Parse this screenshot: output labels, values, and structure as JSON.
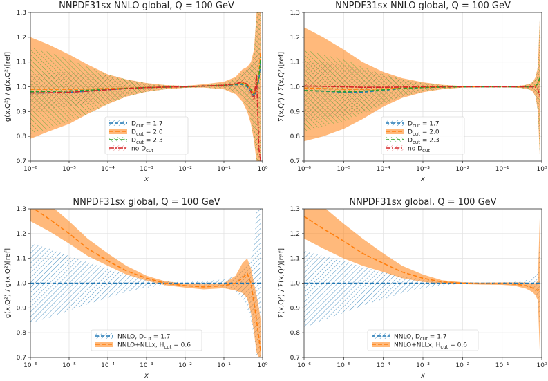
{
  "chart_data": [
    {
      "type": "line",
      "title": "NNPDF31sx NNLO global, Q = 100 GeV",
      "xlabel": "x",
      "ylabel": "g(x,Q²) / g(x,Q²)[ref]",
      "xscale": "log",
      "xlim": [
        1e-06,
        1
      ],
      "ylim": [
        0.7,
        1.3
      ],
      "xticks": [
        "10⁻⁶",
        "10⁻⁵",
        "10⁻⁴",
        "10⁻³",
        "10⁻²",
        "10⁻¹",
        "10⁰"
      ],
      "yticks": [
        "0.7",
        "0.8",
        "0.9",
        "1.0",
        "1.1",
        "1.2",
        "1.3"
      ],
      "legend_position": "bottom-center",
      "x": [
        1e-06,
        3e-06,
        1e-05,
        3e-05,
        0.0001,
        0.0003,
        0.001,
        0.003,
        0.01,
        0.03,
        0.1,
        0.2,
        0.3,
        0.4,
        0.5,
        0.6,
        0.7,
        0.8,
        0.9
      ],
      "series": [
        {
          "name": "D_cut = 1.7",
          "legend": "D",
          "sub": "cut",
          "value_label": " = 1.7",
          "color": "#1f77b4",
          "style": "hatch-diag",
          "values": [
            0.975,
            0.975,
            0.977,
            0.982,
            0.988,
            0.993,
            0.997,
            0.999,
            1.0,
            1.003,
            1.005,
            1.008,
            1.01,
            1.0,
            0.98,
            0.96,
            0.99,
            1.03,
            1.1
          ],
          "upper": [
            1.05,
            1.06,
            1.06,
            1.055,
            1.045,
            1.03,
            1.015,
            1.007,
            1.004,
            1.008,
            1.015,
            1.03,
            1.06,
            1.07,
            1.08,
            1.12,
            1.3,
            1.3,
            1.3
          ],
          "lower": [
            0.9,
            0.91,
            0.92,
            0.93,
            0.94,
            0.96,
            0.98,
            0.99,
            0.996,
            0.998,
            0.993,
            0.98,
            0.96,
            0.93,
            0.88,
            0.8,
            0.72,
            0.7,
            0.7
          ]
        },
        {
          "name": "D_cut = 2.0",
          "legend": "D",
          "sub": "cut",
          "value_label": " = 2.0",
          "color": "#ff7f0e",
          "style": "filled",
          "values": [
            0.99,
            0.99,
            0.99,
            0.991,
            0.993,
            0.995,
            0.997,
            0.999,
            1.0,
            1.003,
            1.006,
            1.01,
            1.015,
            1.01,
            0.99,
            0.97,
            1.0,
            1.05,
            1.15
          ],
          "upper": [
            1.2,
            1.17,
            1.13,
            1.09,
            1.05,
            1.03,
            1.015,
            1.007,
            1.004,
            1.01,
            1.02,
            1.04,
            1.07,
            1.08,
            1.1,
            1.15,
            1.3,
            1.3,
            1.3
          ],
          "lower": [
            0.79,
            0.82,
            0.85,
            0.89,
            0.93,
            0.96,
            0.98,
            0.99,
            0.996,
            0.997,
            0.99,
            0.97,
            0.94,
            0.9,
            0.85,
            0.78,
            0.7,
            0.7,
            0.7
          ]
        },
        {
          "name": "D_cut = 2.3",
          "legend": "D",
          "sub": "cut",
          "value_label": " = 2.3",
          "color": "#2ca02c",
          "style": "hatch-cross",
          "values": [
            0.98,
            0.981,
            0.983,
            0.986,
            0.99,
            0.994,
            0.997,
            0.999,
            1.0,
            1.003,
            1.006,
            1.01,
            1.012,
            1.005,
            0.99,
            0.97,
            1.0,
            1.04,
            1.12
          ],
          "upper": [
            1.16,
            1.14,
            1.11,
            1.08,
            1.05,
            1.03,
            1.015,
            1.007,
            1.004,
            1.008,
            1.015,
            1.035,
            1.06,
            1.07,
            1.09,
            1.14,
            1.3,
            1.3,
            1.3
          ],
          "lower": [
            0.81,
            0.83,
            0.86,
            0.89,
            0.93,
            0.96,
            0.98,
            0.99,
            0.996,
            0.997,
            0.99,
            0.975,
            0.95,
            0.91,
            0.86,
            0.79,
            0.7,
            0.7,
            0.7
          ]
        },
        {
          "name": "no D_cut",
          "legend": "no D",
          "sub": "cut",
          "value_label": "",
          "color": "#d62728",
          "style": "dashdot",
          "values": [
            0.975,
            0.976,
            0.978,
            0.982,
            0.988,
            0.993,
            0.997,
            0.999,
            1.0,
            1.003,
            1.006,
            1.012,
            1.02,
            1.01,
            0.98,
            0.95,
            1.05,
            0.75,
            0.7
          ],
          "upper": [
            0.985,
            0.985,
            0.985,
            0.988,
            0.992,
            0.996,
            0.999,
            1.0,
            1.002,
            1.005,
            1.009,
            1.016,
            1.026,
            1.02,
            1.0,
            0.98,
            1.1,
            0.85,
            0.8
          ],
          "lower": [
            0.965,
            0.966,
            0.97,
            0.976,
            0.984,
            0.99,
            0.995,
            0.998,
            0.998,
            1.001,
            1.003,
            1.008,
            1.014,
            1.0,
            0.96,
            0.92,
            1.0,
            0.7,
            0.7
          ]
        }
      ]
    },
    {
      "type": "line",
      "title": "NNPDF31sx NNLO global, Q = 100 GeV",
      "xlabel": "x",
      "ylabel": "Σ(x,Q²) / Σ(x,Q²)[ref]",
      "xscale": "log",
      "xlim": [
        1e-06,
        1
      ],
      "ylim": [
        0.7,
        1.3
      ],
      "xticks": [
        "10⁻⁶",
        "10⁻⁵",
        "10⁻⁴",
        "10⁻³",
        "10⁻²",
        "10⁻¹",
        "10⁰"
      ],
      "yticks": [
        "0.7",
        "0.8",
        "0.9",
        "1.0",
        "1.1",
        "1.2",
        "1.3"
      ],
      "legend_position": "bottom-center",
      "x": [
        1e-06,
        3e-06,
        1e-05,
        3e-05,
        0.0001,
        0.0003,
        0.001,
        0.003,
        0.01,
        0.03,
        0.1,
        0.2,
        0.3,
        0.4,
        0.5,
        0.6,
        0.7,
        0.8,
        0.9
      ],
      "series": [
        {
          "name": "D_cut = 1.7",
          "legend": "D",
          "sub": "cut",
          "value_label": " = 1.7",
          "color": "#1f77b4",
          "style": "hatch-diag",
          "values": [
            0.985,
            0.982,
            0.978,
            0.978,
            0.986,
            0.993,
            0.997,
            0.999,
            1.0,
            1.0,
            1.0,
            1.0,
            1.0,
            1.0,
            1.0,
            1.0,
            1.005,
            1.01,
            1.03
          ],
          "upper": [
            1.1,
            1.1,
            1.09,
            1.07,
            1.05,
            1.03,
            1.015,
            1.007,
            1.003,
            1.002,
            1.002,
            1.003,
            1.005,
            1.008,
            1.012,
            1.02,
            1.04,
            1.08,
            1.3
          ],
          "lower": [
            0.86,
            0.87,
            0.88,
            0.9,
            0.93,
            0.96,
            0.98,
            0.993,
            0.997,
            0.998,
            0.998,
            0.997,
            0.995,
            0.992,
            0.988,
            0.98,
            0.96,
            0.9,
            0.7
          ]
        },
        {
          "name": "D_cut = 2.0",
          "legend": "D",
          "sub": "cut",
          "value_label": " = 2.0",
          "color": "#ff7f0e",
          "style": "filled",
          "values": [
            0.995,
            0.993,
            0.99,
            0.99,
            0.992,
            0.995,
            0.998,
            0.999,
            1.0,
            1.0,
            1.0,
            1.0,
            1.0,
            1.0,
            1.0,
            1.0,
            1.005,
            1.01,
            1.03
          ],
          "upper": [
            1.24,
            1.2,
            1.15,
            1.1,
            1.06,
            1.035,
            1.018,
            1.008,
            1.003,
            1.002,
            1.002,
            1.003,
            1.005,
            1.008,
            1.012,
            1.02,
            1.04,
            1.08,
            1.3
          ],
          "lower": [
            0.78,
            0.8,
            0.83,
            0.87,
            0.92,
            0.955,
            0.978,
            0.99,
            0.997,
            0.998,
            0.998,
            0.997,
            0.995,
            0.992,
            0.988,
            0.98,
            0.96,
            0.9,
            0.7
          ]
        },
        {
          "name": "D_cut = 2.3",
          "legend": "D",
          "sub": "cut",
          "value_label": " = 2.3",
          "color": "#2ca02c",
          "style": "hatch-cross",
          "values": [
            0.985,
            0.983,
            0.98,
            0.982,
            0.988,
            0.994,
            0.997,
            0.999,
            1.0,
            1.0,
            1.0,
            1.0,
            1.0,
            1.0,
            1.0,
            1.0,
            1.005,
            1.012,
            1.04
          ],
          "upper": [
            1.15,
            1.13,
            1.11,
            1.08,
            1.05,
            1.03,
            1.015,
            1.007,
            1.003,
            1.002,
            1.002,
            1.003,
            1.005,
            1.008,
            1.012,
            1.02,
            1.04,
            1.08,
            1.3
          ],
          "lower": [
            0.82,
            0.84,
            0.86,
            0.89,
            0.93,
            0.96,
            0.98,
            0.992,
            0.997,
            0.998,
            0.998,
            0.997,
            0.995,
            0.992,
            0.988,
            0.98,
            0.96,
            0.9,
            0.7
          ]
        },
        {
          "name": "no D_cut",
          "legend": "no D",
          "sub": "cut",
          "value_label": "",
          "color": "#d62728",
          "style": "dashdot",
          "values": [
            1.003,
            1.002,
            1.0,
            0.998,
            0.998,
            0.999,
            1.0,
            1.0,
            1.0,
            1.0,
            1.0,
            1.0,
            1.0,
            1.0,
            1.0,
            1.0,
            0.998,
            0.99,
            0.96
          ],
          "upper": [
            1.01,
            1.008,
            1.005,
            1.003,
            1.002,
            1.002,
            1.002,
            1.001,
            1.001,
            1.001,
            1.001,
            1.002,
            1.003,
            1.004,
            1.005,
            1.008,
            1.01,
            1.01,
            0.99
          ],
          "lower": [
            0.996,
            0.996,
            0.995,
            0.993,
            0.994,
            0.996,
            0.998,
            0.999,
            0.999,
            0.999,
            0.999,
            0.998,
            0.997,
            0.996,
            0.995,
            0.992,
            0.985,
            0.97,
            0.93
          ]
        }
      ]
    },
    {
      "type": "line",
      "title": "NNPDF31sx global, Q = 100 GeV",
      "xlabel": "x",
      "ylabel": "g(x,Q²) / g(x,Q²)[ref]",
      "xscale": "log",
      "xlim": [
        1e-06,
        1
      ],
      "ylim": [
        0.7,
        1.3
      ],
      "xticks": [
        "10⁻⁶",
        "10⁻⁵",
        "10⁻⁴",
        "10⁻³",
        "10⁻²",
        "10⁻¹",
        "10⁰"
      ],
      "yticks": [
        "0.7",
        "0.8",
        "0.9",
        "1.0",
        "1.1",
        "1.2",
        "1.3"
      ],
      "legend_position": "bottom-center",
      "x": [
        1e-06,
        3e-06,
        1e-05,
        3e-05,
        0.0001,
        0.0003,
        0.001,
        0.003,
        0.01,
        0.03,
        0.1,
        0.2,
        0.3,
        0.4,
        0.5,
        0.6,
        0.7,
        0.8,
        0.9
      ],
      "series": [
        {
          "name": "NNLO, D_cut = 1.7",
          "legend": "NNLO, D",
          "sub": "cut",
          "value_label": " = 1.7",
          "color": "#1f77b4",
          "style": "hatch-diag",
          "values": [
            1.0,
            1.0,
            1.0,
            1.0,
            1.0,
            1.0,
            1.0,
            1.0,
            1.0,
            1.0,
            1.0,
            1.0,
            1.0,
            1.0,
            1.0,
            1.0,
            1.0,
            1.0,
            1.0
          ],
          "upper": [
            1.16,
            1.14,
            1.11,
            1.085,
            1.06,
            1.035,
            1.018,
            1.008,
            1.004,
            1.008,
            1.015,
            1.03,
            1.06,
            1.08,
            1.1,
            1.15,
            1.3,
            1.3,
            1.3
          ],
          "lower": [
            0.84,
            0.86,
            0.89,
            0.915,
            0.94,
            0.965,
            0.982,
            0.992,
            0.996,
            0.992,
            0.985,
            0.97,
            0.94,
            0.9,
            0.85,
            0.78,
            0.7,
            0.7,
            0.7
          ]
        },
        {
          "name": "NNLO+NLLx, H_cut = 0.6",
          "legend": "NNLO+NLLx, H",
          "sub": "cut",
          "value_label": " = 0.6",
          "color": "#ff7f0e",
          "style": "filled",
          "values": [
            1.31,
            1.26,
            1.2,
            1.14,
            1.09,
            1.05,
            1.02,
            1.0,
            0.99,
            0.985,
            0.99,
            1.0,
            1.02,
            1.04,
            1.0,
            0.92,
            0.85,
            0.78,
            0.72
          ],
          "upper": [
            1.37,
            1.32,
            1.25,
            1.18,
            1.12,
            1.07,
            1.03,
            1.008,
            0.998,
            0.995,
            1.0,
            1.03,
            1.08,
            1.1,
            1.06,
            1.0,
            0.95,
            0.9,
            0.85
          ],
          "lower": [
            1.25,
            1.21,
            1.16,
            1.11,
            1.07,
            1.035,
            1.01,
            0.992,
            0.982,
            0.975,
            0.98,
            0.97,
            0.96,
            0.94,
            0.88,
            0.8,
            0.72,
            0.7,
            0.7
          ]
        }
      ]
    },
    {
      "type": "line",
      "title": "NNPDF31sx global, Q = 100 GeV",
      "xlabel": "x",
      "ylabel": "Σ(x,Q²) / Σ(x,Q²)[ref]",
      "xscale": "log",
      "xlim": [
        1e-06,
        1
      ],
      "ylim": [
        0.7,
        1.3
      ],
      "xticks": [
        "10⁻⁶",
        "10⁻⁵",
        "10⁻⁴",
        "10⁻³",
        "10⁻²",
        "10⁻¹",
        "10⁰"
      ],
      "yticks": [
        "0.7",
        "0.8",
        "0.9",
        "1.0",
        "1.1",
        "1.2",
        "1.3"
      ],
      "legend_position": "bottom-center",
      "x": [
        1e-06,
        3e-06,
        1e-05,
        3e-05,
        0.0001,
        0.0003,
        0.001,
        0.003,
        0.01,
        0.03,
        0.1,
        0.2,
        0.3,
        0.4,
        0.5,
        0.6,
        0.7,
        0.8,
        0.9
      ],
      "series": [
        {
          "name": "NNLO, D_cut = 1.7",
          "legend": "NNLO, D",
          "sub": "cut",
          "value_label": " = 1.7",
          "color": "#1f77b4",
          "style": "hatch-diag",
          "values": [
            1.0,
            1.0,
            1.0,
            1.0,
            1.0,
            1.0,
            1.0,
            1.0,
            1.0,
            1.0,
            1.0,
            1.0,
            1.0,
            1.0,
            1.0,
            1.0,
            1.0,
            1.0,
            1.0
          ],
          "upper": [
            1.13,
            1.11,
            1.09,
            1.065,
            1.045,
            1.028,
            1.015,
            1.007,
            1.003,
            1.002,
            1.003,
            1.005,
            1.008,
            1.012,
            1.016,
            1.022,
            1.035,
            1.06,
            1.2
          ],
          "lower": [
            0.82,
            0.85,
            0.88,
            0.91,
            0.935,
            0.96,
            0.98,
            0.992,
            0.997,
            0.998,
            0.997,
            0.995,
            0.992,
            0.988,
            0.984,
            0.978,
            0.965,
            0.94,
            0.8
          ]
        },
        {
          "name": "NNLO+NLLx, H_cut = 0.6",
          "legend": "NNLO+NLLx, H",
          "sub": "cut",
          "value_label": " = 0.6",
          "color": "#ff7f0e",
          "style": "filled",
          "values": [
            1.27,
            1.22,
            1.17,
            1.12,
            1.08,
            1.045,
            1.02,
            1.005,
            1.0,
            0.998,
            0.998,
            0.996,
            0.993,
            0.99,
            0.985,
            0.98,
            0.975,
            0.97,
            0.98
          ],
          "upper": [
            1.36,
            1.31,
            1.24,
            1.18,
            1.12,
            1.07,
            1.035,
            1.012,
            1.004,
            1.002,
            1.003,
            1.003,
            1.003,
            1.002,
            1.0,
            0.998,
            1.0,
            1.01,
            1.3
          ],
          "lower": [
            1.18,
            1.14,
            1.1,
            1.07,
            1.045,
            1.02,
            1.005,
            0.998,
            0.996,
            0.994,
            0.993,
            0.99,
            0.983,
            0.978,
            0.97,
            0.962,
            0.95,
            0.93,
            0.7
          ]
        }
      ]
    }
  ]
}
